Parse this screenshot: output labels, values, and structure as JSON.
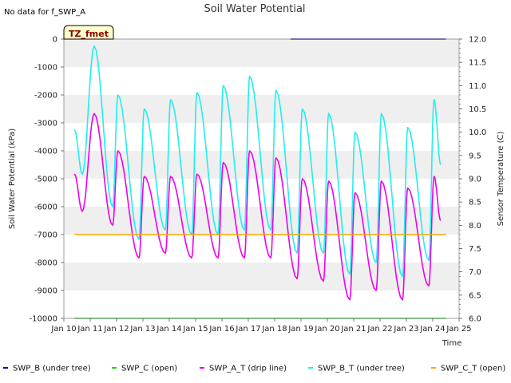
{
  "chart_data": {
    "type": "line",
    "title": "Soil Water Potential",
    "note": "No data for f_SWP_A",
    "tz_label": "TZ_fmet",
    "xlabel": "Time",
    "ylabel_left": "Soil Water Potential (kPa)",
    "ylabel_right": "Sensor Temperature (C)",
    "x_ticks": [
      "Jan 10",
      "Jan 11",
      "Jan 12",
      "Jan 13",
      "Jan 14",
      "Jan 15",
      "Jan 16",
      "Jan 17",
      "Jan 18",
      "Jan 19",
      "Jan 20",
      "Jan 21",
      "Jan 22",
      "Jan 23",
      "Jan 24",
      "Jan 25"
    ],
    "x_range": [
      10,
      25
    ],
    "y_left_ticks": [
      "0",
      "-1000",
      "-2000",
      "-3000",
      "-4000",
      "-5000",
      "-6000",
      "-7000",
      "-8000",
      "-9000",
      "-10000"
    ],
    "y_left_range": [
      -10000,
      0
    ],
    "y_right_ticks": [
      "12.0",
      "11.5",
      "11.0",
      "10.5",
      "10.0",
      "9.5",
      "9.0",
      "8.5",
      "8.0",
      "7.5",
      "7.0",
      "6.5",
      "6.0"
    ],
    "y_right_range": [
      6.0,
      12.0
    ],
    "grid": "horizontal bands",
    "legend_position": "bottom",
    "series": [
      {
        "name": "SWP_B (under tree)",
        "color": "#0000bb",
        "axis": "left",
        "x": [
          18.6,
          24.5
        ],
        "y": [
          0,
          0
        ]
      },
      {
        "name": "SWP_C (open)",
        "color": "#22cc22",
        "axis": "left",
        "x": [
          10.4,
          24.5
        ],
        "y": [
          -10000,
          -10000
        ]
      },
      {
        "name": "SWP_A_T (drip line)",
        "color": "#ee00ee",
        "axis": "right",
        "peaks": [
          [
            11.15,
            10.4
          ],
          [
            12.05,
            9.6
          ],
          [
            13.05,
            9.05
          ],
          [
            14.05,
            9.05
          ],
          [
            15.05,
            9.1
          ],
          [
            16.05,
            9.35
          ],
          [
            17.05,
            9.6
          ],
          [
            18.05,
            9.45
          ],
          [
            19.05,
            9.0
          ],
          [
            20.05,
            8.95
          ],
          [
            21.05,
            8.7
          ],
          [
            22.05,
            8.95
          ],
          [
            23.05,
            8.8
          ],
          [
            24.05,
            9.05
          ]
        ],
        "troughs": [
          [
            10.4,
            9.1
          ],
          [
            10.7,
            8.3
          ],
          [
            11.85,
            8.0
          ],
          [
            12.85,
            7.3
          ],
          [
            13.85,
            7.4
          ],
          [
            14.85,
            7.3
          ],
          [
            15.85,
            7.3
          ],
          [
            16.85,
            7.3
          ],
          [
            17.85,
            7.3
          ],
          [
            18.85,
            6.85
          ],
          [
            19.85,
            6.8
          ],
          [
            20.85,
            6.4
          ],
          [
            21.85,
            6.6
          ],
          [
            22.85,
            6.4
          ],
          [
            23.85,
            6.7
          ],
          [
            24.3,
            8.1
          ]
        ]
      },
      {
        "name": "SWP_B_T (under tree)",
        "color": "#22eeee",
        "axis": "right",
        "peaks": [
          [
            11.15,
            11.85
          ],
          [
            12.05,
            10.8
          ],
          [
            13.05,
            10.5
          ],
          [
            14.05,
            10.7
          ],
          [
            15.05,
            10.85
          ],
          [
            16.05,
            11.0
          ],
          [
            17.05,
            11.2
          ],
          [
            18.05,
            10.9
          ],
          [
            19.05,
            10.5
          ],
          [
            20.05,
            10.4
          ],
          [
            21.05,
            10.0
          ],
          [
            22.05,
            10.4
          ],
          [
            23.05,
            10.1
          ],
          [
            24.05,
            10.7
          ]
        ],
        "troughs": [
          [
            10.4,
            10.05
          ],
          [
            10.7,
            9.1
          ],
          [
            11.85,
            8.4
          ],
          [
            12.85,
            7.7
          ],
          [
            13.85,
            7.9
          ],
          [
            14.85,
            7.8
          ],
          [
            15.85,
            7.8
          ],
          [
            16.85,
            7.9
          ],
          [
            17.85,
            7.9
          ],
          [
            18.85,
            7.4
          ],
          [
            19.85,
            7.4
          ],
          [
            20.85,
            6.95
          ],
          [
            21.85,
            7.2
          ],
          [
            22.85,
            6.9
          ],
          [
            23.85,
            7.25
          ],
          [
            24.3,
            9.3
          ]
        ]
      },
      {
        "name": "SWP_C_T (open)",
        "color": "#ffa500",
        "axis": "left",
        "x": [
          10.4,
          24.5
        ],
        "y": [
          -7000,
          -7000
        ]
      }
    ]
  }
}
